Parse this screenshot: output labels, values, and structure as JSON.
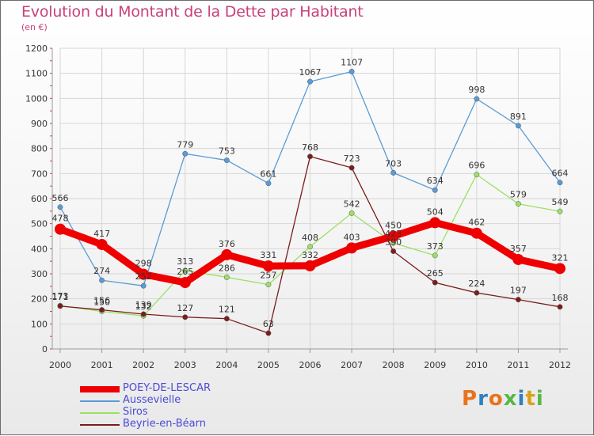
{
  "title": "Evolution du Montant de la Dette par Habitant",
  "subtitle": "(en €)",
  "logo": "Proxiti",
  "chart_data": {
    "type": "line",
    "x": [
      "2000",
      "2001",
      "2002",
      "2003",
      "2004",
      "2005",
      "2006",
      "2007",
      "2008",
      "2009",
      "2010",
      "2011",
      "2012"
    ],
    "ylim": [
      0,
      1200
    ],
    "yticks": [
      0,
      100,
      200,
      300,
      400,
      500,
      600,
      700,
      800,
      900,
      1000,
      1100,
      1200
    ],
    "grid": true,
    "legend_position": "bottom-left",
    "series": [
      {
        "name": "POEY-DE-LESCAR",
        "color": "#ee0000",
        "values": [
          478,
          417,
          298,
          265,
          376,
          331,
          332,
          403,
          450,
          504,
          462,
          357,
          321
        ]
      },
      {
        "name": "Aussevielle",
        "color": "#5a9bd5",
        "values": [
          566,
          274,
          252,
          779,
          753,
          661,
          1067,
          1107,
          703,
          634,
          998,
          891,
          664
        ]
      },
      {
        "name": "Siros",
        "color": "#9be067",
        "values": [
          173,
          150,
          132,
          313,
          286,
          257,
          408,
          542,
          423,
          373,
          696,
          579,
          549
        ]
      },
      {
        "name": "Beyrie-en-Béarn",
        "color": "#7a1d1d",
        "values": [
          171,
          156,
          139,
          127,
          121,
          63,
          768,
          723,
          390,
          265,
          224,
          197,
          168
        ]
      }
    ]
  }
}
